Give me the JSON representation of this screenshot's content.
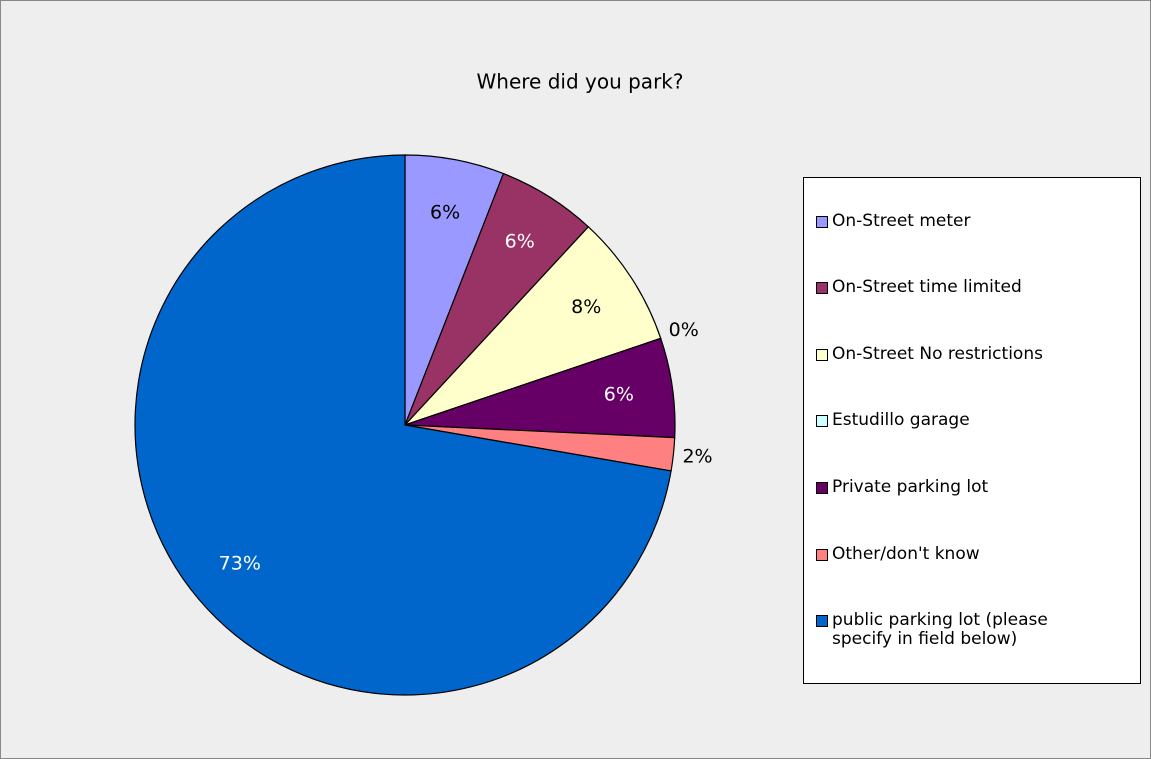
{
  "chart_data": {
    "type": "pie",
    "title": "Where did you park?",
    "categories": [
      "On-Street meter",
      "On-Street time limited",
      "On-Street No restrictions",
      "Estudillo garage",
      "Private parking lot",
      "Other/don't know",
      "public parking lot (please specify in field below)"
    ],
    "values": [
      6,
      6,
      8,
      0,
      6,
      2,
      73
    ],
    "value_labels": [
      "6%",
      "6%",
      "8%",
      "0%",
      "6%",
      "2%",
      "73%"
    ],
    "colors": [
      "#9999ff",
      "#993366",
      "#ffffcc",
      "#ccffff",
      "#660066",
      "#ff8080",
      "#0066cc"
    ],
    "legend": "right"
  }
}
